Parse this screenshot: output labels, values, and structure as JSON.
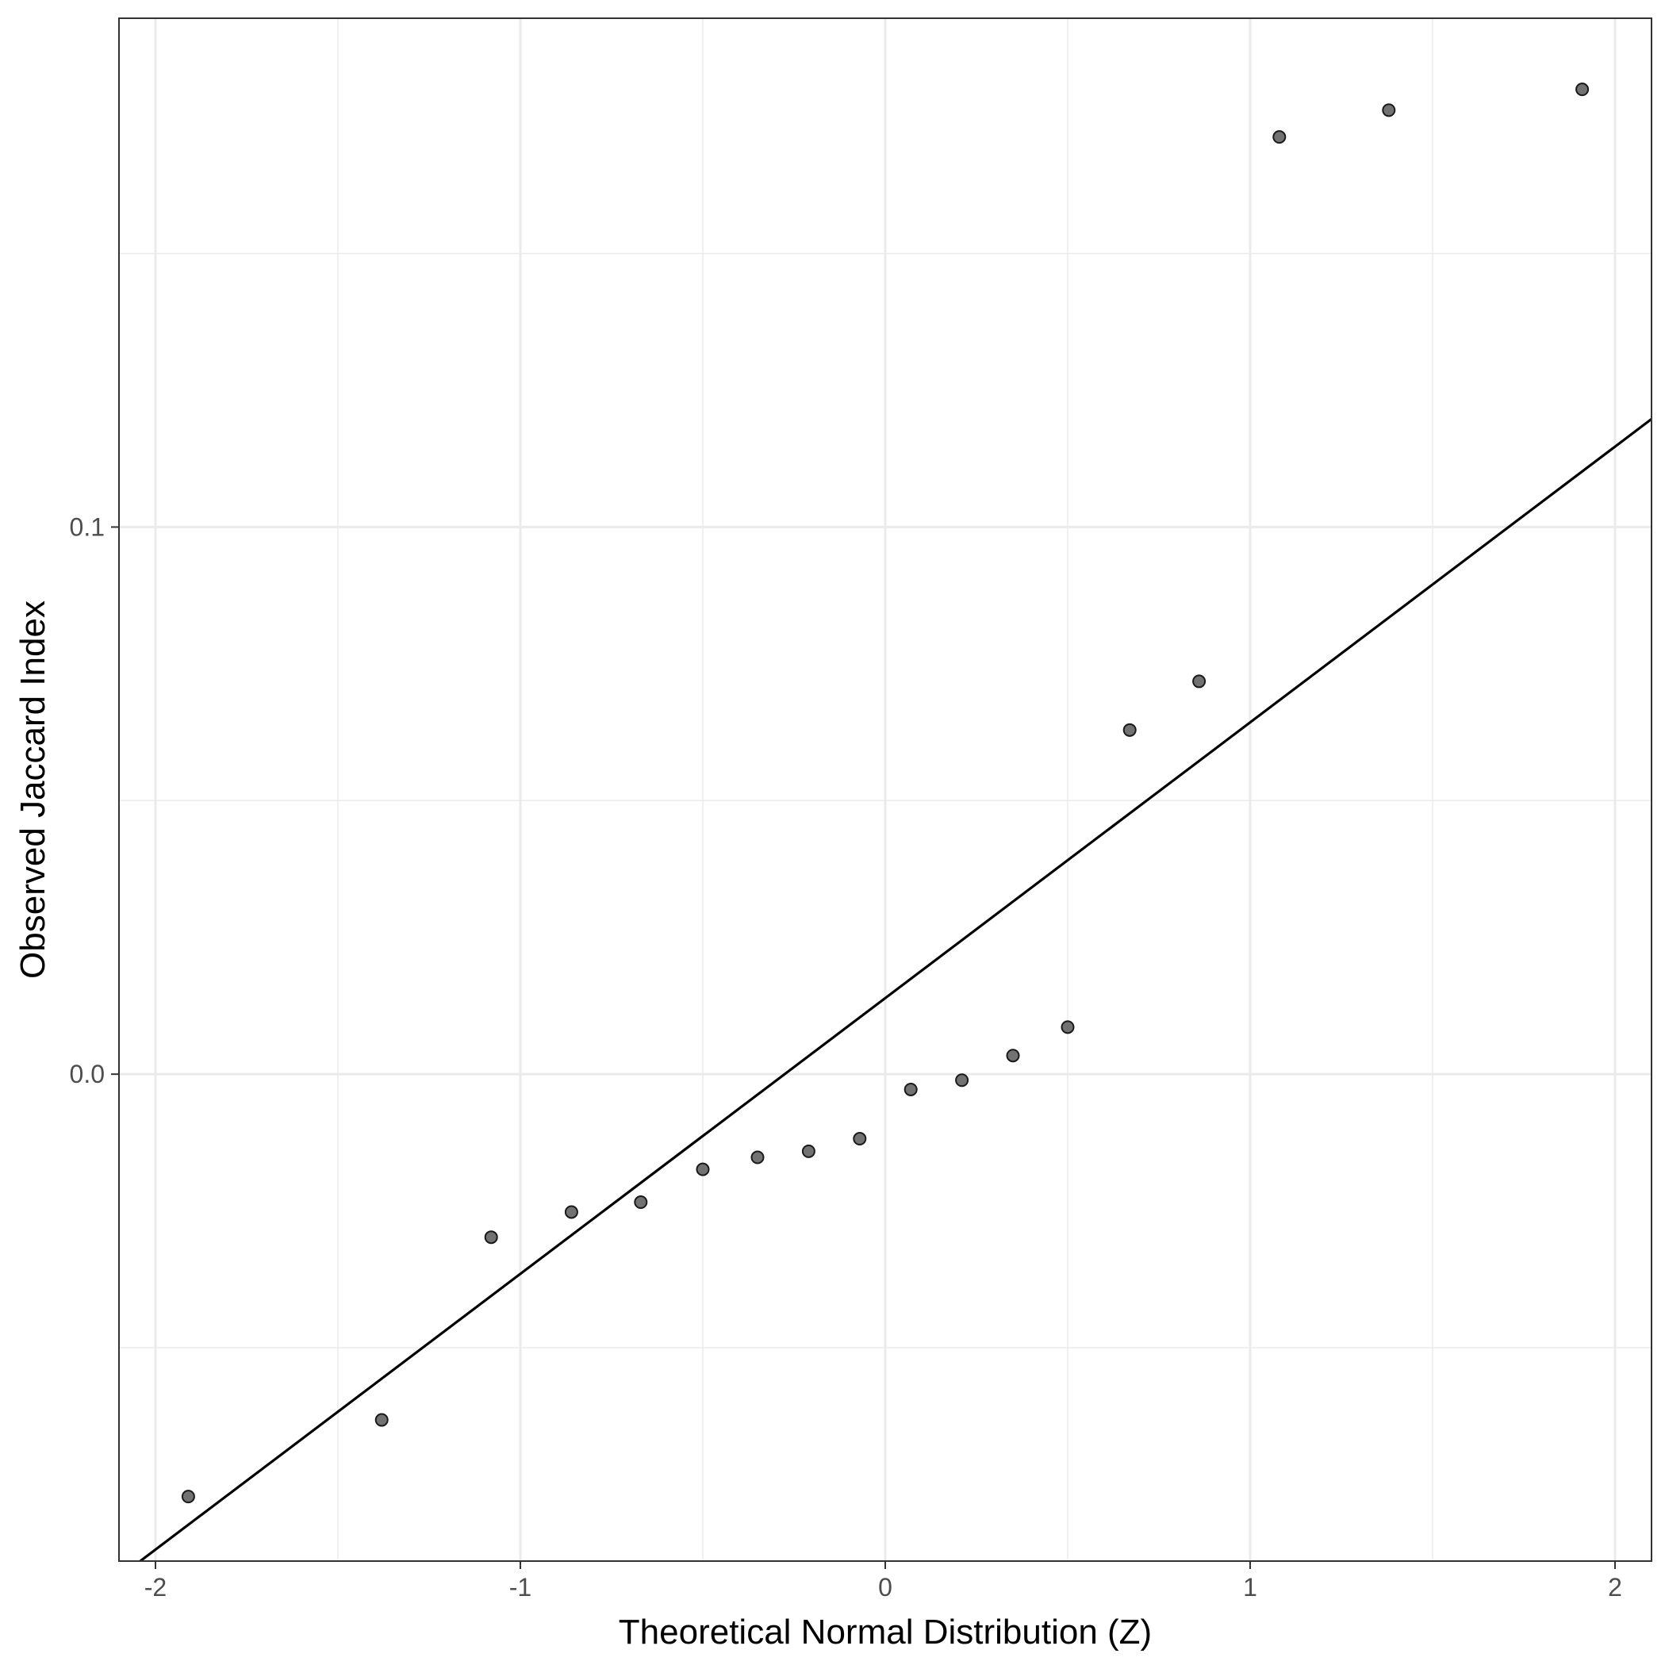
{
  "chart_data": {
    "type": "scatter",
    "title": "",
    "xlabel": "Theoretical Normal Distribution (Z)",
    "ylabel": "Observed Jaccard Index",
    "xlim": [
      -2.1,
      2.1
    ],
    "ylim": [
      -0.089,
      0.193
    ],
    "x_ticks": [
      -2,
      -1,
      0,
      1,
      2
    ],
    "x_tick_labels": [
      "-2",
      "-1",
      "0",
      "1",
      "2"
    ],
    "x_minor_ticks": [
      -1.5,
      -0.5,
      0.5,
      1.5
    ],
    "y_ticks": [
      0.0,
      0.1
    ],
    "y_tick_labels": [
      "0.0",
      "0.1"
    ],
    "y_minor_ticks": [
      -0.05,
      0.05,
      0.15
    ],
    "grid": true,
    "legend": "none",
    "colors": {
      "points": "#595959",
      "point_outline": "#1a1a1a",
      "line": "#000000",
      "grid": "#ebebeb",
      "panel_border": "#333333"
    },
    "points": [
      {
        "x": -1.91,
        "y": -0.0772
      },
      {
        "x": -1.38,
        "y": -0.0632
      },
      {
        "x": -1.08,
        "y": -0.0298
      },
      {
        "x": -0.86,
        "y": -0.0252
      },
      {
        "x": -0.67,
        "y": -0.0234
      },
      {
        "x": -0.5,
        "y": -0.0174
      },
      {
        "x": -0.35,
        "y": -0.0152
      },
      {
        "x": -0.21,
        "y": -0.0141
      },
      {
        "x": -0.07,
        "y": -0.0118
      },
      {
        "x": 0.07,
        "y": -0.0028
      },
      {
        "x": 0.21,
        "y": -0.0011
      },
      {
        "x": 0.35,
        "y": 0.0034
      },
      {
        "x": 0.5,
        "y": 0.0086
      },
      {
        "x": 0.67,
        "y": 0.0629
      },
      {
        "x": 0.86,
        "y": 0.0718
      },
      {
        "x": 1.08,
        "y": 0.1713
      },
      {
        "x": 1.38,
        "y": 0.1762
      },
      {
        "x": 1.91,
        "y": 0.18
      }
    ],
    "reference_line": {
      "intercept": 0.0139,
      "slope": 0.0504
    }
  }
}
